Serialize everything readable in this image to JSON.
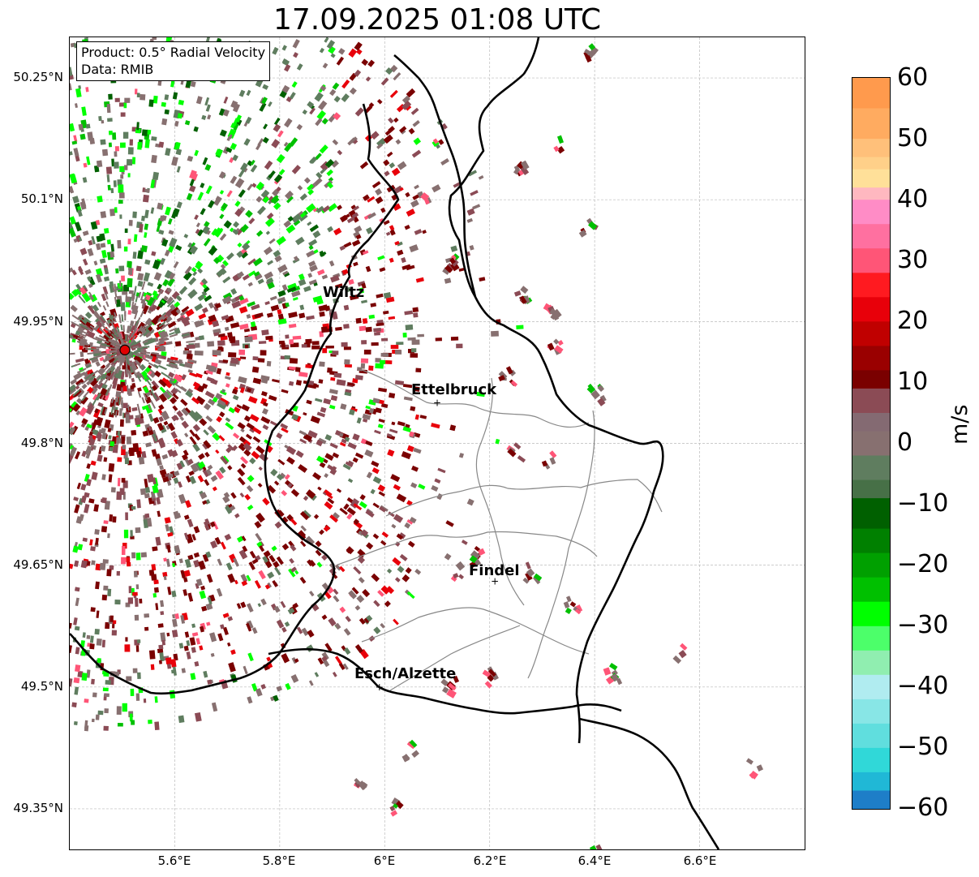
{
  "title": "17.09.2025 01:08 UTC",
  "info_box": {
    "product": "Product: 0.5° Radial Velocity",
    "data": "Data: RMIB"
  },
  "map": {
    "lat_ticks": [
      "50.25°N",
      "50.1°N",
      "49.95°N",
      "49.8°N",
      "49.65°N",
      "49.5°N",
      "49.35°N"
    ],
    "lon_ticks": [
      "5.6°E",
      "5.8°E",
      "6°E",
      "6.2°E",
      "6.4°E",
      "6.6°E"
    ],
    "lat_range": [
      49.3,
      50.3
    ],
    "lon_range": [
      5.4,
      6.8
    ],
    "cities": [
      {
        "name": "Wiltz",
        "lon": 5.93,
        "lat": 49.97
      },
      {
        "name": "Ettelbruck",
        "lon": 6.1,
        "lat": 49.85
      },
      {
        "name": "Findel",
        "lon": 6.21,
        "lat": 49.63
      },
      {
        "name": "Esch/Alzette",
        "lon": 5.99,
        "lat": 49.5
      }
    ],
    "radar_site": {
      "lon": 5.505,
      "lat": 49.915
    },
    "grid": true
  },
  "colorbar": {
    "unit": "m/s",
    "ticks": [
      "60",
      "50",
      "40",
      "30",
      "20",
      "10",
      "0",
      "−10",
      "−20",
      "−30",
      "−40",
      "−50",
      "−60"
    ],
    "range": [
      -60,
      60
    ],
    "colors": {
      "orange": "#ff9a4d",
      "peach": "#ffc07a",
      "yellow": "#ffe099",
      "pink": "#ff8cc6",
      "rose": "#ff5577",
      "red": "#e8000a",
      "darkred": "#7a0000",
      "brownred": "#8b4b55",
      "grey": "#877070",
      "greyg": "#5f7d5f",
      "darkgreen": "#006000",
      "green": "#00c000",
      "lime": "#00ff00",
      "mint": "#90eeb0",
      "lightcyan": "#b0ecf0",
      "cyan": "#30d8d8",
      "blue": "#1e7ec8"
    }
  }
}
